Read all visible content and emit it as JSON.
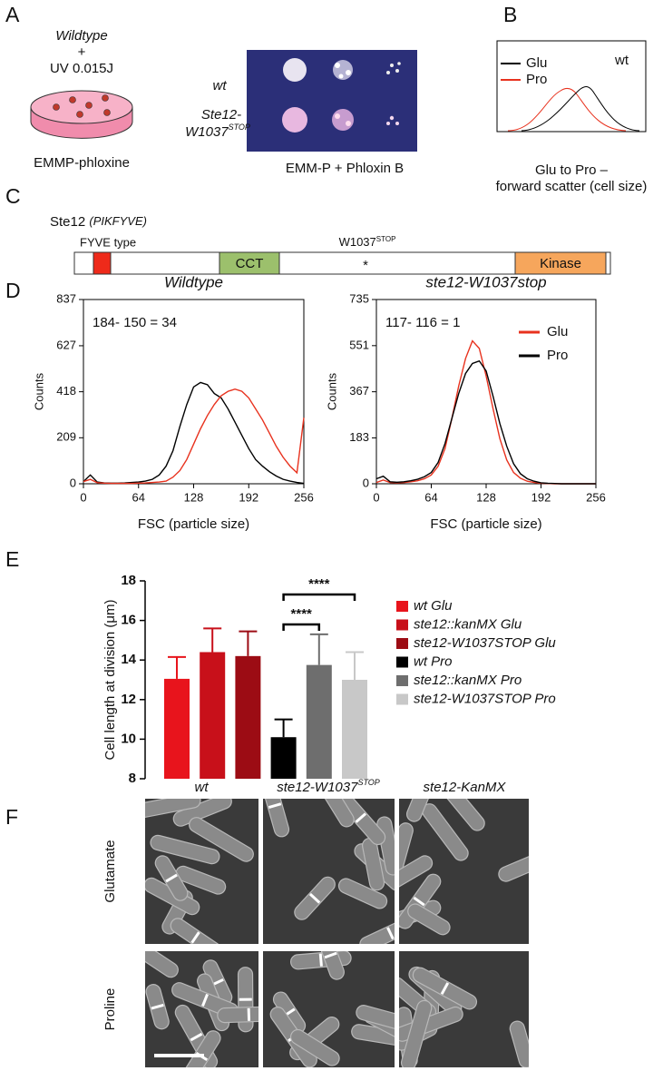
{
  "panel_letters": [
    "A",
    "B",
    "C",
    "D",
    "E",
    "F"
  ],
  "panel_a": {
    "strain": "Wildtype",
    "plus": "+",
    "dose": "UV 0.015J",
    "medium": "EMMP-phloxine",
    "row_wt": "wt",
    "row_mut_1": "Ste12-",
    "row_mut_2": {
      "base": "W1037",
      "sup": "STOP"
    },
    "caption": "EMM-P  + Phloxin B"
  },
  "panel_b": {
    "legend": [
      "Glu",
      "Pro"
    ],
    "strain": "wt",
    "caption": [
      "Glu to Pro –",
      "forward scatter (cell size)"
    ]
  },
  "panel_c": {
    "protein": "Ste12",
    "alias": "(PIKFYVE)",
    "domain_label": "FYVE type",
    "mutation": {
      "base": "W1037",
      "sup": "STOP"
    },
    "star": "*",
    "domains": [
      "CCT",
      "Kinase"
    ]
  },
  "chart_data": [
    {
      "type": "line",
      "title": "Wildtype",
      "annotation": "184- 150 = 34",
      "xlabel": "FSC  (particle size)",
      "ylabel": "Counts",
      "x": [
        0,
        8,
        16,
        24,
        32,
        40,
        48,
        56,
        64,
        72,
        80,
        88,
        96,
        104,
        112,
        120,
        128,
        136,
        144,
        152,
        160,
        168,
        176,
        184,
        192,
        200,
        208,
        216,
        224,
        232,
        240,
        248,
        256
      ],
      "xlim": [
        0,
        256
      ],
      "xticks": [
        0,
        64,
        128,
        192,
        256
      ],
      "ylim": [
        0,
        837
      ],
      "yticks": [
        0,
        209,
        418,
        627,
        837
      ],
      "series": [
        {
          "color": "#000000",
          "values": [
            10,
            40,
            8,
            4,
            3,
            3,
            4,
            6,
            8,
            12,
            20,
            40,
            80,
            150,
            260,
            360,
            440,
            460,
            450,
            410,
            390,
            340,
            280,
            220,
            160,
            110,
            80,
            55,
            35,
            20,
            12,
            6,
            2
          ]
        },
        {
          "color": "#e8321e",
          "values": [
            10,
            20,
            5,
            3,
            2,
            2,
            2,
            2,
            3,
            4,
            6,
            8,
            12,
            30,
            60,
            110,
            180,
            250,
            310,
            360,
            400,
            420,
            430,
            420,
            390,
            340,
            290,
            230,
            170,
            120,
            80,
            50,
            300
          ]
        }
      ]
    },
    {
      "type": "line",
      "title": "ste12-W1037stop",
      "annotation": "117- 116 = 1",
      "xlabel": "FSC  (particle size)",
      "ylabel": "Counts",
      "legend": "upper right",
      "x": [
        0,
        8,
        16,
        24,
        32,
        40,
        48,
        56,
        64,
        72,
        80,
        88,
        96,
        104,
        112,
        120,
        128,
        136,
        144,
        152,
        160,
        168,
        176,
        184,
        192,
        200,
        208,
        216,
        224,
        232,
        240,
        248,
        256
      ],
      "xlim": [
        0,
        256
      ],
      "xticks": [
        0,
        64,
        128,
        192,
        256
      ],
      "ylim": [
        0,
        735
      ],
      "yticks": [
        0,
        183,
        367,
        551,
        735
      ],
      "series": [
        {
          "name": "Glu",
          "color": "#e8321e",
          "values": [
            5,
            15,
            5,
            4,
            5,
            8,
            12,
            20,
            35,
            70,
            140,
            260,
            390,
            500,
            570,
            540,
            430,
            300,
            180,
            95,
            45,
            22,
            10,
            5,
            2,
            1,
            0,
            0,
            0,
            0,
            0,
            0,
            0
          ]
        },
        {
          "name": "Pro",
          "color": "#000000",
          "values": [
            20,
            30,
            8,
            6,
            8,
            12,
            18,
            28,
            45,
            85,
            160,
            260,
            360,
            440,
            480,
            490,
            450,
            350,
            240,
            150,
            80,
            40,
            20,
            10,
            4,
            2,
            1,
            0,
            0,
            0,
            0,
            0,
            0
          ]
        }
      ]
    },
    {
      "type": "bar",
      "ylabel": "Cell length at division (μm)",
      "legend": "right",
      "categories": [
        "wt Glu",
        "ste12::kanMX Glu",
        "ste12-W1037STOP Glu",
        "wt Pro",
        "ste12::kanMX Pro",
        "ste12-W1037STOP Pro"
      ],
      "values": [
        13.05,
        14.4,
        14.2,
        10.1,
        13.75,
        13.0
      ],
      "errors": [
        1.1,
        1.2,
        1.25,
        0.9,
        1.55,
        1.4
      ],
      "colors": [
        "#e8141c",
        "#c8101a",
        "#9c0c14",
        "#000000",
        "#6e6e6e",
        "#c8c8c8"
      ],
      "ylim": [
        8,
        18
      ],
      "yticks": [
        8,
        10,
        12,
        14,
        16,
        18
      ],
      "annotations": [
        "****",
        "****"
      ]
    }
  ],
  "panel_f": {
    "columns": [
      {
        "text": "wt"
      },
      {
        "base": "ste12-W1037",
        "sup": "STOP"
      },
      {
        "text": "ste12-KanMX"
      }
    ],
    "rows": [
      "Glutamate",
      "Proline"
    ]
  }
}
